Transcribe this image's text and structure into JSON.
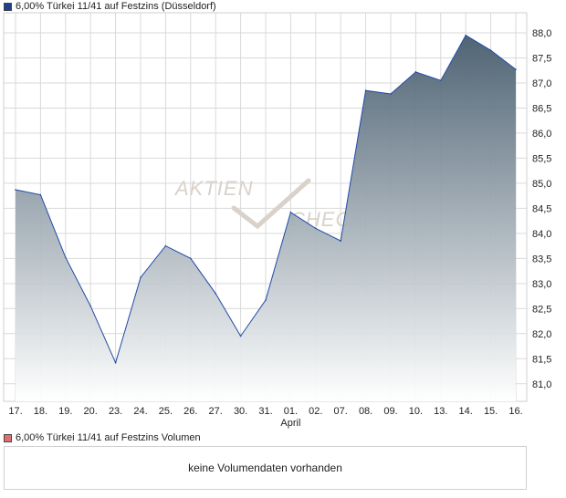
{
  "legend": {
    "price_label": "6,00% Türkei 11/41 auf Festzins (Düsseldorf)",
    "volume_label": "6,00% Türkei 11/41 auf Festzins Volumen"
  },
  "volume_panel": {
    "message": "keine Volumendaten vorhanden"
  },
  "watermark": {
    "line1": "AKTIEN",
    "line2": "CHECK"
  },
  "colors": {
    "line": "#1f4aa8",
    "area_top": "#465c6d",
    "area_bottom": "#ffffff",
    "grid": "#d9d9d9"
  },
  "chart_data": {
    "type": "area",
    "x_labels": [
      "17.",
      "18.",
      "19.",
      "20.",
      "23.",
      "24.",
      "25.",
      "26.",
      "27.",
      "30.",
      "31.",
      "01.",
      "02.",
      "07.",
      "08.",
      "09.",
      "10.",
      "13.",
      "14.",
      "15.",
      "16."
    ],
    "x_sublabels": [
      {
        "index": 11,
        "text": "April"
      }
    ],
    "values": [
      84.87,
      84.77,
      83.52,
      82.55,
      81.42,
      83.12,
      83.75,
      83.5,
      82.8,
      81.95,
      82.67,
      84.42,
      84.1,
      83.85,
      86.85,
      86.78,
      87.22,
      87.05,
      87.95,
      87.65,
      87.27
    ],
    "y_ticks": [
      81.0,
      81.5,
      82.0,
      82.5,
      83.0,
      83.5,
      84.0,
      84.5,
      85.0,
      85.5,
      86.0,
      86.5,
      87.0,
      87.5,
      88.0
    ],
    "y_tick_labels": [
      "81,0",
      "81,5",
      "82,0",
      "82,5",
      "83,0",
      "83,5",
      "84,0",
      "84,5",
      "85,0",
      "85,5",
      "86,0",
      "86,5",
      "87,0",
      "87,5",
      "88,0"
    ],
    "ylim": [
      80.65,
      88.4
    ],
    "grid": true,
    "legend_position": "top-left"
  }
}
